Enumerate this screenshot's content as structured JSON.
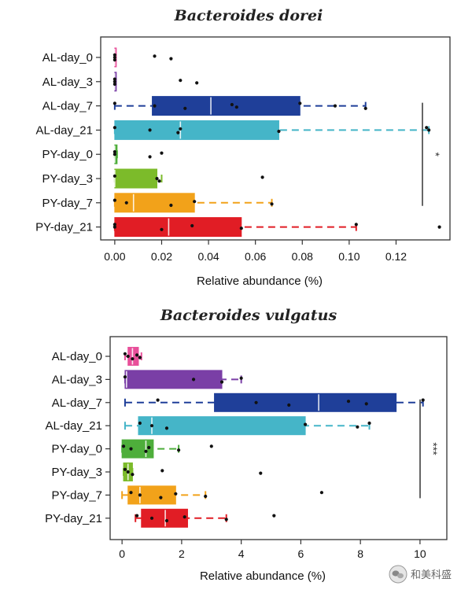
{
  "chart_data": [
    {
      "type": "boxplot",
      "title": "Bacteroides dorei",
      "xlabel": "Relative abundance (%)",
      "xlim": [
        -0.006,
        0.143
      ],
      "xticks": [
        "0.00",
        "0.02",
        "0.04",
        "0.06",
        "0.08",
        "0.10",
        "0.12"
      ],
      "categories": [
        "AL-day_0",
        "AL-day_3",
        "AL-day_7",
        "AL-day_21",
        "PY-day_0",
        "PY-day_3",
        "PY-day_7",
        "PY-day_21"
      ],
      "colors": [
        "#e84f9a",
        "#7a3fa6",
        "#1f3f99",
        "#45b5c8",
        "#4eae3b",
        "#7cbb2a",
        "#f2a21a",
        "#e11d25"
      ],
      "boxes": [
        {
          "q1": 0.0,
          "median": 0.0,
          "q3": 0.0005,
          "wlo": 0.0,
          "whi": 0.0005,
          "points": [
            0.0,
            0.0,
            0.0,
            0.017,
            0.024
          ]
        },
        {
          "q1": 0.0,
          "median": 0.0,
          "q3": 0.0005,
          "wlo": 0.0,
          "whi": 0.0005,
          "points": [
            0.0,
            0.0,
            0.0,
            0.028,
            0.035
          ]
        },
        {
          "q1": 0.016,
          "median": 0.041,
          "q3": 0.079,
          "wlo": 0.0,
          "whi": 0.107,
          "points": [
            0.0,
            0.017,
            0.03,
            0.05,
            0.052,
            0.079,
            0.094,
            0.107
          ]
        },
        {
          "q1": 0.0,
          "median": 0.028,
          "q3": 0.07,
          "wlo": 0.0,
          "whi": 0.134,
          "points": [
            0.0,
            0.015,
            0.027,
            0.028,
            0.07,
            0.133,
            0.134
          ]
        },
        {
          "q1": 0.0,
          "median": 0.0,
          "q3": 0.001,
          "wlo": 0.0,
          "whi": 0.001,
          "points": [
            0.0,
            0.0,
            0.015,
            0.02
          ]
        },
        {
          "q1": 0.0,
          "median": 0.0,
          "q3": 0.018,
          "wlo": 0.0,
          "whi": 0.02,
          "points": [
            0.0,
            0.018,
            0.019,
            0.063
          ]
        },
        {
          "q1": 0.0,
          "median": 0.008,
          "q3": 0.034,
          "wlo": 0.0,
          "whi": 0.067,
          "points": [
            0.0,
            0.005,
            0.024,
            0.034,
            0.067
          ]
        },
        {
          "q1": 0.0,
          "median": 0.023,
          "q3": 0.054,
          "wlo": 0.0,
          "whi": 0.103,
          "points": [
            0.0,
            0.0,
            0.02,
            0.033,
            0.054,
            0.103,
            0.1385
          ]
        }
      ],
      "significance": {
        "from": "AL-day_7",
        "to": "PY-day_7",
        "label": "*"
      }
    },
    {
      "type": "boxplot",
      "title": "Bacteroides vulgatus",
      "xlabel": "Relative abundance (%)",
      "xlim": [
        -0.4,
        10.9
      ],
      "xticks": [
        "0",
        "2",
        "4",
        "6",
        "8",
        "10"
      ],
      "categories": [
        "AL-day_0",
        "AL-day_3",
        "AL-day_7",
        "AL-day_21",
        "PY-day_0",
        "PY-day_3",
        "PY-day_7",
        "PY-day_21"
      ],
      "colors": [
        "#e84f9a",
        "#7a3fa6",
        "#1f3f99",
        "#45b5c8",
        "#4eae3b",
        "#7cbb2a",
        "#f2a21a",
        "#e11d25"
      ],
      "boxes": [
        {
          "q1": 0.2,
          "median": 0.35,
          "q3": 0.55,
          "wlo": 0.1,
          "whi": 0.65,
          "points": [
            0.1,
            0.2,
            0.35,
            0.5,
            0.6
          ]
        },
        {
          "q1": 0.1,
          "median": 0.15,
          "q3": 3.35,
          "wlo": 0.1,
          "whi": 4.0,
          "points": [
            0.1,
            2.4,
            3.35,
            4.0
          ]
        },
        {
          "q1": 3.1,
          "median": 6.6,
          "q3": 9.2,
          "wlo": 0.1,
          "whi": 10.1,
          "points": [
            1.2,
            4.5,
            5.6,
            7.6,
            8.2,
            10.1
          ]
        },
        {
          "q1": 0.55,
          "median": 1.0,
          "q3": 6.15,
          "wlo": 0.1,
          "whi": 8.3,
          "points": [
            0.6,
            1.0,
            1.5,
            6.15,
            7.9,
            8.3
          ]
        },
        {
          "q1": 0.0,
          "median": 0.8,
          "q3": 1.05,
          "wlo": 0.0,
          "whi": 1.9,
          "points": [
            0.05,
            0.3,
            0.8,
            0.9,
            1.9,
            3.0
          ]
        },
        {
          "q1": 0.05,
          "median": 0.2,
          "q3": 0.35,
          "wlo": 0.05,
          "whi": 0.35,
          "points": [
            0.1,
            0.2,
            0.35,
            1.35,
            4.65
          ]
        },
        {
          "q1": 0.2,
          "median": 0.6,
          "q3": 1.8,
          "wlo": 0.0,
          "whi": 2.8,
          "points": [
            0.3,
            0.6,
            1.3,
            1.8,
            2.8,
            6.7
          ]
        },
        {
          "q1": 0.65,
          "median": 1.45,
          "q3": 2.2,
          "wlo": 0.45,
          "whi": 3.5,
          "points": [
            0.5,
            1.0,
            1.5,
            2.1,
            3.5,
            5.1
          ]
        }
      ],
      "significance": {
        "from": "AL-day_7",
        "to": "PY-day_7",
        "label": "***"
      }
    }
  ],
  "watermark": {
    "icon": "wechat-icon",
    "text": "和美科盛"
  }
}
